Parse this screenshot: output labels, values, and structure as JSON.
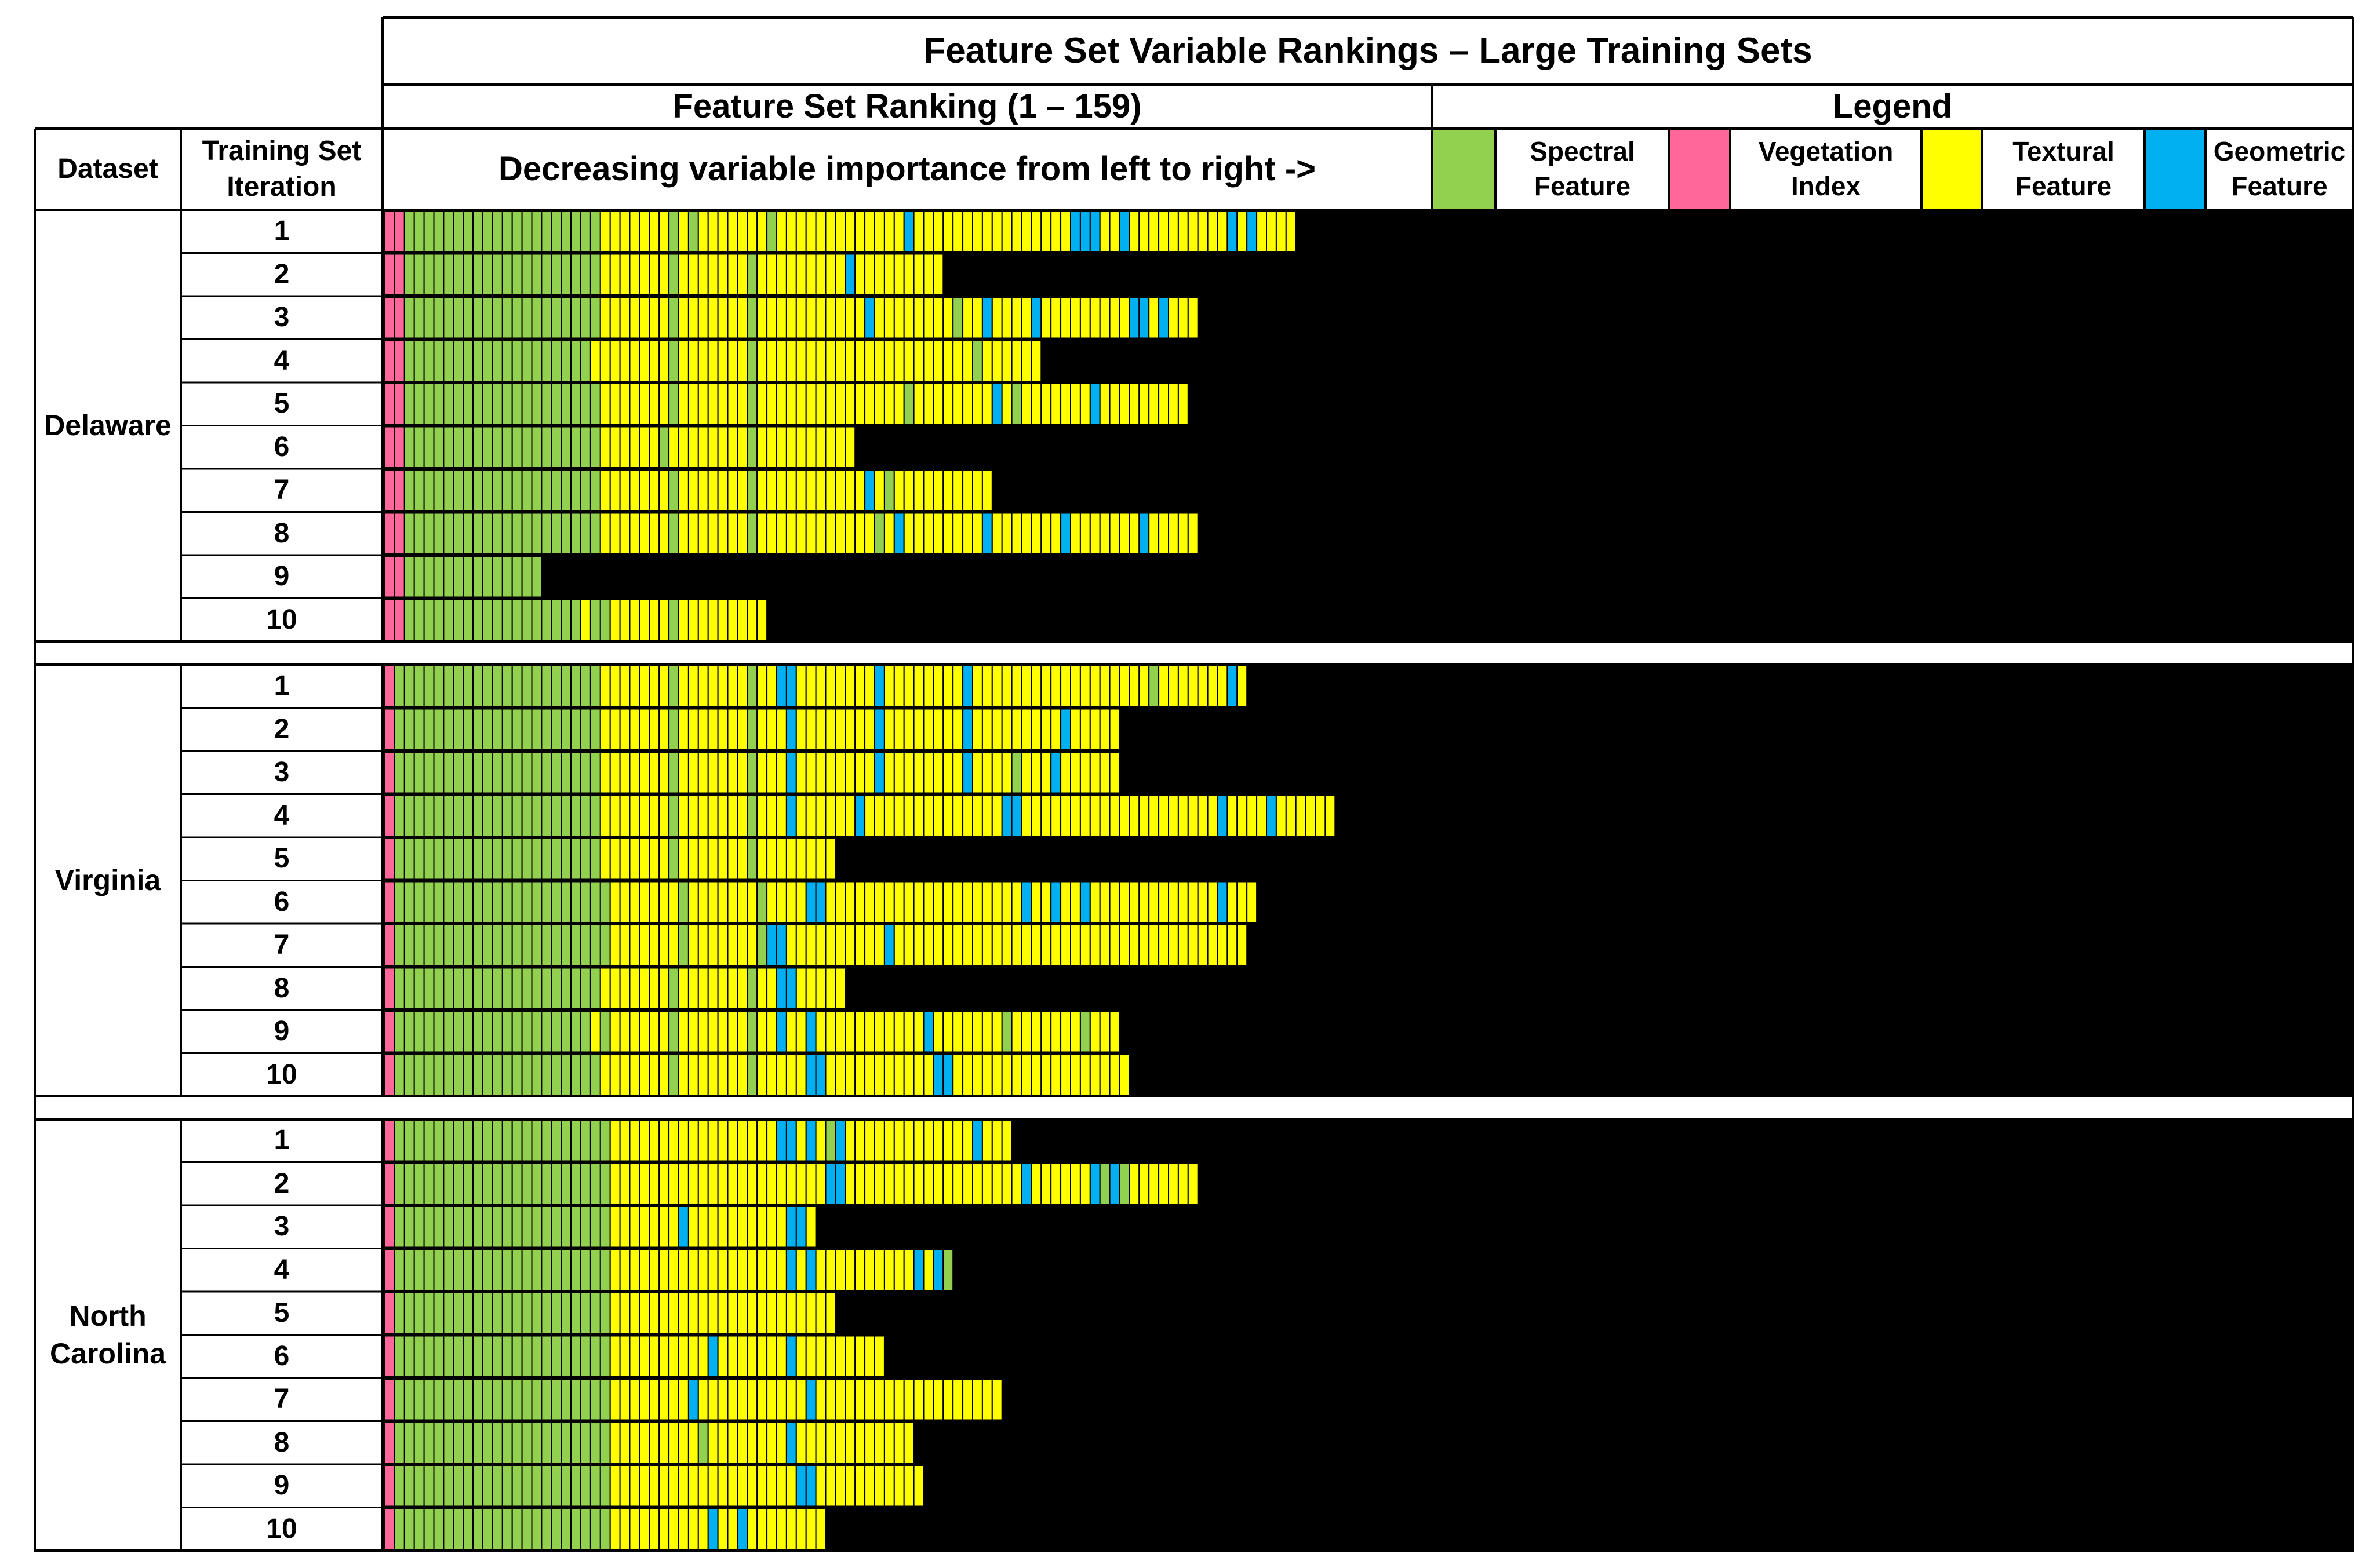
{
  "chart_data": {
    "type": "table",
    "title": "Feature Set Variable Rankings – Large Training Sets",
    "subtitle": "Feature Set Ranking (1 – 159)",
    "direction_note": "Decreasing variable importance from left to right ->",
    "columns": {
      "dataset": "Dataset",
      "iteration": "Training Set Iteration"
    },
    "legend": {
      "title": "Legend",
      "items": [
        {
          "code": "S",
          "label": "Spectral Feature",
          "color": "#92d050"
        },
        {
          "code": "V",
          "label": "Vegetation Index",
          "color": "#ff6699"
        },
        {
          "code": "T",
          "label": "Textural Feature",
          "color": "#ffff00"
        },
        {
          "code": "G",
          "label": "Geometric Feature",
          "color": "#00b0f0"
        }
      ]
    },
    "empty_color": "#000000",
    "datasets": [
      {
        "name": "Delaware",
        "rows": [
          {
            "iteration": "1",
            "sequence": "VVSSSSSSSSSSSSSSSSSSSSTTTTTTTSTSTTTTTTTSTTTTTTTTTTTTTGTTTTTTTTTTTTTTTTGGGTTGTTTTTTTTTTGTGTTTT"
          },
          {
            "iteration": "2",
            "sequence": "VVSSSSSSSSSSSSSSSSSSSSTTTTTTTSTTTTTTTSTTTTTTTTTGTTTTTTTTT"
          },
          {
            "iteration": "3",
            "sequence": "VVSSSSSSSSSSSSSSSSSSSSTTTTTTTSTTTTTTTSTTTTTTTTTTTGTTTTTTTTSTTGTTTTGTTTTTTTTTGGTGTTT"
          },
          {
            "iteration": "4",
            "sequence": "VVSSSSSSSSSSSSSSSSSSSTTTTTTTTSTTTTTTTSTTTTTTTTTTTTTTTTTTTTTTSTTTTTT"
          },
          {
            "iteration": "5",
            "sequence": "VVSSSSSSSSSSSSSSSSSSSSTTTTTTTSTTTTTTTSTTTTTTTTTTTTTTTSTTTTTTTTGTSTTTTTTTGTTTTTTTTT"
          },
          {
            "iteration": "6",
            "sequence": "VVSSSSSSSSSSSSSSSSSSSSTTTTTTSTTTTTTTTSTTTTTTTTTT"
          },
          {
            "iteration": "7",
            "sequence": "VVSSSSSSSSSSSSSSSSSSSSTTTTTTTSTTTTTTTSTTTTTTTTTTTGTSTTTTTTTTTT"
          },
          {
            "iteration": "8",
            "sequence": "VVSSSSSSSSSSSSSSSSSSSSTTTTTTTSTTTTTTTSTTTTTTTTTTTTSTGTTTTTTTTGTTTTTTTGTTTTTTTGTTTTT"
          },
          {
            "iteration": "9",
            "sequence": "VVSSSSSSSSSSSSSS"
          },
          {
            "iteration": "10",
            "sequence": "VVSSSSSSSSSSSSSSSSSSTSSTTTTTTSTTTTTTTTT"
          }
        ]
      },
      {
        "name": "Virginia",
        "rows": [
          {
            "iteration": "1",
            "sequence": "VSSSSSSSSSSSSSSSSSSSSSTTTTTTTSTTTTTTTSTTGGTTTTTTTTGTTTTTTTTGTTTTTTTTTTTTTTTTTTSTTTTTTTGT"
          },
          {
            "iteration": "2",
            "sequence": "VSSSSSSSSSSSSSSSSSSSSSTTTTTTTSTTTTTTTSTTTGTTTTTTTTGTTTTTTTTGTTTTTTTTTGTTTTT"
          },
          {
            "iteration": "3",
            "sequence": "VSSSSSSSSSSSSSSSSSSSSSTTTTTTTSTTTTTTTSTTTGTTTTTTTTGTTTTTTTTGTTTTSTTTGTTTTTT"
          },
          {
            "iteration": "4",
            "sequence": "VSSSSSSSSSSSSSSSSSSSSSTTTTTTTSTTTTTTTSTTTGTTTTTTGTTTTTTTTTTTTTTGGTTTTTTTTTTTTTTTTTTTTGTTTTGTTTTTT"
          },
          {
            "iteration": "5",
            "sequence": "VSSSSSSSSSSSSSSSSSSSSSTTTTTTTSTTTTTTTSTTTTTTTT"
          },
          {
            "iteration": "6",
            "sequence": "VSSSSSSSSSSSSSSSSSSSSSSTTTTTTTSTTTTTTTSTTTTGGTTTTTTTTTTTTTTTTTTTTGTTGTTGTTTTTTTTTTTTTGTTT"
          },
          {
            "iteration": "7",
            "sequence": "VSSSSSSSSSSSSSSSSSSSSSSTTTTTTTSTTTTTTTSGGTTTTTTTTTTGTTTTTTTTTTTTTTTTTTTTTTTTTTTTTTTTTTTT"
          },
          {
            "iteration": "8",
            "sequence": "VSSSSSSSSSSSSSSSSSSSSSTTTTTTTSTTTTTTTSTTGGTTTTT"
          },
          {
            "iteration": "9",
            "sequence": "VSSSSSSSSSSSSSSSSSSSSTSTTTTTTSTTTTTTTSTTGTTGTTTTTTTTTTTGTTTTTTTSTTTTTTTSTTT"
          },
          {
            "iteration": "10",
            "sequence": "VSSSSSSSSSSSSSSSSSSSSSTTTTTTTSTTTTTTTSTTTTTGGTTTTTTTTTTTGGTTTTTTTTTTTTTTTTTT"
          }
        ]
      },
      {
        "name": "North Carolina",
        "rows": [
          {
            "iteration": "1",
            "sequence": "VSSSSSSSSSSSSSSSSSSSSSSTTTTTTTTTTTTTTTTTGGTGTSGTTTTTTTTTTTTTGTTT"
          },
          {
            "iteration": "2",
            "sequence": "VSSSSSSSSSSSSSSSSSSSSSSTTTTTTTTTTTTTTTTTTTTTTGGTTTTTTTTTTTTTTTTTTGTTTTTTGSGSTTTTTTT"
          },
          {
            "iteration": "3",
            "sequence": "VSSSSSSSSSSSSSSSSSSSSSSTTTTTTTGTTTTTTTTTTGGT"
          },
          {
            "iteration": "4",
            "sequence": "VSSSSSSSSSSSSSSSSSSSSSSTTTTTTTTTTTTTTTTTTGTGTTTTTTTTTTGTGS"
          },
          {
            "iteration": "5",
            "sequence": "VSSSSSSSSSSSSSSSSSSSSSSTTTTTTTTTTTTTTTTTTTTTTT"
          },
          {
            "iteration": "6",
            "sequence": "VSSSSSSSSSSSSSSSSSSSSSSTTTTTTTTTTGTTTTTTTGTTTTTTTTT"
          },
          {
            "iteration": "7",
            "sequence": "VSSSSSSSSSSSSSSSSSSSSSSTTTTTTTTGTTTTTTTTTTTGTTTTTTTTTTTTTTTTTTT"
          },
          {
            "iteration": "8",
            "sequence": "VSSSSSSSSSSSSSSSSSSSSSSTTTTTTTTTSTTTTTTTTGTTTTTTTTTTTT"
          },
          {
            "iteration": "9",
            "sequence": "VSSSSSSSSSSSSSSSSSSSSSSTTTTTTTTTTTTTTTTTTTGGTTTTTTTTTTT"
          },
          {
            "iteration": "10",
            "sequence": "VSSSSSSSSSSSSSSSSSSSSSSTTTTTTTTTTGTTGTTTTTTTT"
          }
        ]
      }
    ]
  }
}
